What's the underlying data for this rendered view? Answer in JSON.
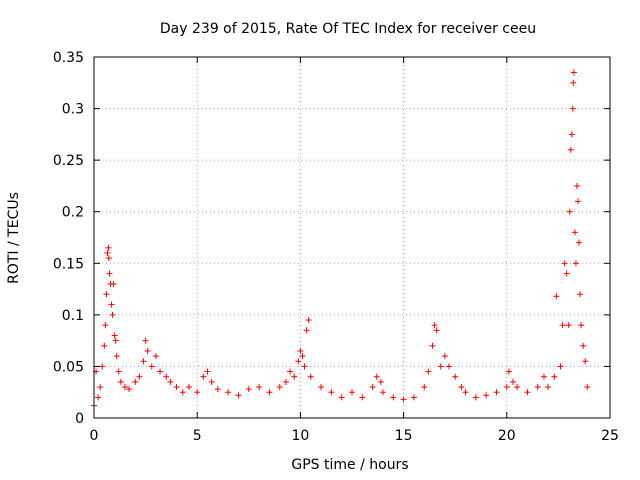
{
  "chart_data": {
    "type": "scatter",
    "title": "Day 239 of 2015, Rate Of TEC Index for receiver ceeu",
    "xlabel": "GPS time / hours",
    "ylabel": "ROTI / TECUs",
    "xlim": [
      0,
      25
    ],
    "ylim": [
      0,
      0.35
    ],
    "xticks": [
      0,
      5,
      10,
      15,
      20,
      25
    ],
    "yticks": [
      0,
      0.05,
      0.1,
      0.15,
      0.2,
      0.25,
      0.3,
      0.35
    ],
    "xtick_labels": [
      "0",
      "5",
      "10",
      "15",
      "20",
      "25"
    ],
    "ytick_labels": [
      "0",
      "0.05",
      "0.1",
      "0.15",
      "0.2",
      "0.25",
      "0.3",
      "0.35"
    ],
    "grid": true,
    "marker": "+",
    "color": "#ff0000",
    "series": [
      {
        "points": [
          [
            0.0,
            0.012
          ],
          [
            0.1,
            0.045
          ],
          [
            0.2,
            0.02
          ],
          [
            0.3,
            0.03
          ],
          [
            0.4,
            0.05
          ],
          [
            0.5,
            0.07
          ],
          [
            0.55,
            0.09
          ],
          [
            0.6,
            0.12
          ],
          [
            0.65,
            0.16
          ],
          [
            0.7,
            0.165
          ],
          [
            0.72,
            0.155
          ],
          [
            0.75,
            0.14
          ],
          [
            0.8,
            0.13
          ],
          [
            0.85,
            0.11
          ],
          [
            0.9,
            0.1
          ],
          [
            0.95,
            0.13
          ],
          [
            1.0,
            0.08
          ],
          [
            1.05,
            0.075
          ],
          [
            1.1,
            0.06
          ],
          [
            1.2,
            0.045
          ],
          [
            1.3,
            0.035
          ],
          [
            1.5,
            0.03
          ],
          [
            1.7,
            0.028
          ],
          [
            2.0,
            0.035
          ],
          [
            2.2,
            0.04
          ],
          [
            2.4,
            0.055
          ],
          [
            2.5,
            0.075
          ],
          [
            2.6,
            0.065
          ],
          [
            2.8,
            0.05
          ],
          [
            3.0,
            0.06
          ],
          [
            3.2,
            0.045
          ],
          [
            3.5,
            0.04
          ],
          [
            3.7,
            0.035
          ],
          [
            4.0,
            0.03
          ],
          [
            4.3,
            0.025
          ],
          [
            4.6,
            0.03
          ],
          [
            5.0,
            0.025
          ],
          [
            5.3,
            0.04
          ],
          [
            5.5,
            0.045
          ],
          [
            5.7,
            0.035
          ],
          [
            6.0,
            0.028
          ],
          [
            6.5,
            0.025
          ],
          [
            7.0,
            0.022
          ],
          [
            7.5,
            0.028
          ],
          [
            8.0,
            0.03
          ],
          [
            8.5,
            0.025
          ],
          [
            9.0,
            0.03
          ],
          [
            9.3,
            0.035
          ],
          [
            9.5,
            0.045
          ],
          [
            9.7,
            0.04
          ],
          [
            9.9,
            0.055
          ],
          [
            10.0,
            0.065
          ],
          [
            10.1,
            0.06
          ],
          [
            10.2,
            0.05
          ],
          [
            10.3,
            0.085
          ],
          [
            10.4,
            0.095
          ],
          [
            10.5,
            0.04
          ],
          [
            11.0,
            0.03
          ],
          [
            11.5,
            0.025
          ],
          [
            12.0,
            0.02
          ],
          [
            12.5,
            0.025
          ],
          [
            13.0,
            0.02
          ],
          [
            13.5,
            0.03
          ],
          [
            13.7,
            0.04
          ],
          [
            13.9,
            0.035
          ],
          [
            14.0,
            0.025
          ],
          [
            14.5,
            0.02
          ],
          [
            15.0,
            0.018
          ],
          [
            15.5,
            0.02
          ],
          [
            16.0,
            0.03
          ],
          [
            16.2,
            0.045
          ],
          [
            16.4,
            0.07
          ],
          [
            16.5,
            0.09
          ],
          [
            16.6,
            0.085
          ],
          [
            16.8,
            0.05
          ],
          [
            17.0,
            0.06
          ],
          [
            17.2,
            0.05
          ],
          [
            17.5,
            0.04
          ],
          [
            17.8,
            0.03
          ],
          [
            18.0,
            0.025
          ],
          [
            18.5,
            0.02
          ],
          [
            19.0,
            0.022
          ],
          [
            19.5,
            0.025
          ],
          [
            20.0,
            0.03
          ],
          [
            20.1,
            0.045
          ],
          [
            20.3,
            0.035
          ],
          [
            20.5,
            0.03
          ],
          [
            21.0,
            0.025
          ],
          [
            21.5,
            0.03
          ],
          [
            21.8,
            0.04
          ],
          [
            22.0,
            0.03
          ],
          [
            22.3,
            0.04
          ],
          [
            22.4,
            0.118
          ],
          [
            22.6,
            0.05
          ],
          [
            22.7,
            0.09
          ],
          [
            22.8,
            0.15
          ],
          [
            22.9,
            0.14
          ],
          [
            23.0,
            0.09
          ],
          [
            23.05,
            0.2
          ],
          [
            23.1,
            0.26
          ],
          [
            23.15,
            0.275
          ],
          [
            23.2,
            0.3
          ],
          [
            23.22,
            0.325
          ],
          [
            23.25,
            0.335
          ],
          [
            23.3,
            0.18
          ],
          [
            23.35,
            0.15
          ],
          [
            23.4,
            0.225
          ],
          [
            23.45,
            0.21
          ],
          [
            23.5,
            0.17
          ],
          [
            23.55,
            0.12
          ],
          [
            23.6,
            0.09
          ],
          [
            23.7,
            0.07
          ],
          [
            23.8,
            0.055
          ],
          [
            23.9,
            0.03
          ]
        ]
      }
    ]
  }
}
